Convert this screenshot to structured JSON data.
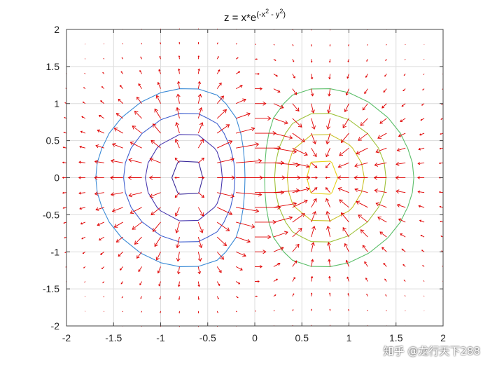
{
  "chart_data": {
    "type": "contour-quiver",
    "title": {
      "prefix": "z = x*e",
      "exponent": "(-x",
      "sup1": "2",
      "mid": " - y",
      "sup2": "2",
      "close": ")"
    },
    "function": "x*exp(-x^2-y^2)",
    "xlim": [
      -2,
      2
    ],
    "ylim": [
      -2,
      2
    ],
    "grid": true,
    "x_ticks": [
      "-2",
      "-1.5",
      "-1",
      "-0.5",
      "0",
      "0.5",
      "1",
      "1.5",
      "2"
    ],
    "y_ticks": [
      "2",
      "1.5",
      "1",
      "0.5",
      "0",
      "-0.5",
      "-1",
      "-1.5",
      "-2"
    ],
    "x_tick_values": [
      -2,
      -1.5,
      -1,
      -0.5,
      0,
      0.5,
      1,
      1.5,
      2
    ],
    "y_tick_values": [
      2,
      1.5,
      1,
      0.5,
      0,
      -0.5,
      -1,
      -1.5,
      -2
    ],
    "contour_levels": [
      {
        "level": -0.4,
        "color": "#3a2a9a"
      },
      {
        "level": -0.3,
        "color": "#4a3ab0"
      },
      {
        "level": -0.2,
        "color": "#3f5fcf"
      },
      {
        "level": -0.1,
        "color": "#3a8ad6"
      },
      {
        "level": 0.0,
        "color": "#21b0b0"
      },
      {
        "level": 0.1,
        "color": "#5cbf6a"
      },
      {
        "level": 0.2,
        "color": "#9fc23a"
      },
      {
        "level": 0.3,
        "color": "#c9c22a"
      },
      {
        "level": 0.4,
        "color": "#e6d21a"
      }
    ],
    "quiver": {
      "color": "#e00000",
      "grid_step": 0.2,
      "field": "gradient"
    }
  },
  "watermark": "知乎 @龙行天下288"
}
